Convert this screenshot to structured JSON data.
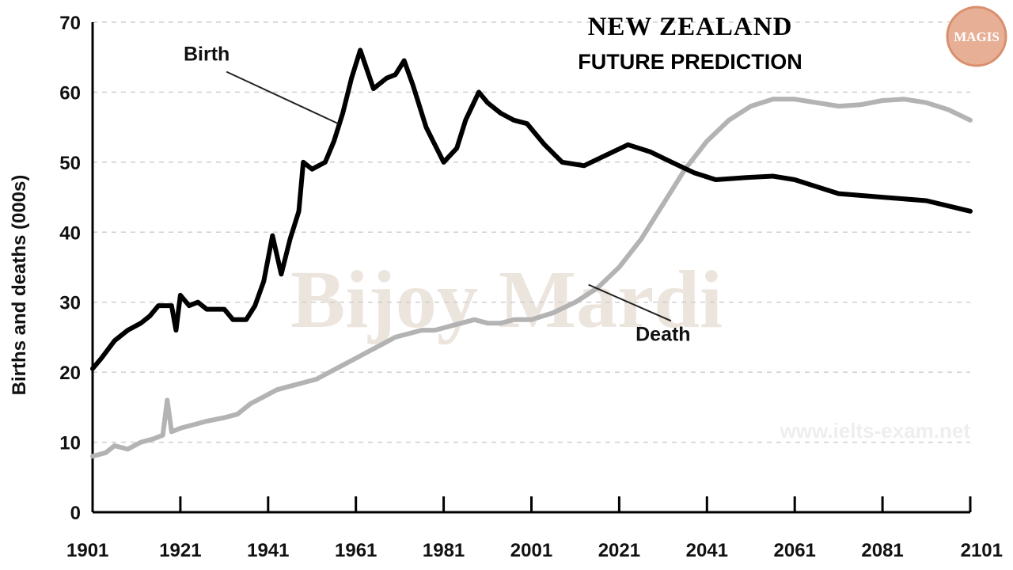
{
  "chart_data": {
    "type": "line",
    "title": "NEW ZEALAND",
    "subtitle": "FUTURE PREDICTION",
    "xlabel": "",
    "ylabel": "Births and deaths (000s)",
    "xlim": [
      1901,
      2101
    ],
    "ylim": [
      0,
      70
    ],
    "x_ticks": [
      1901,
      1921,
      1941,
      1961,
      1981,
      2001,
      2021,
      2041,
      2061,
      2081,
      2101
    ],
    "y_ticks": [
      0,
      10,
      20,
      30,
      40,
      50,
      60,
      70
    ],
    "grid": "horizontal dashed",
    "series": [
      {
        "name": "Birth",
        "color": "#000000",
        "points": [
          [
            1901,
            20.5
          ],
          [
            1903,
            22
          ],
          [
            1906,
            24.5
          ],
          [
            1909,
            26
          ],
          [
            1912,
            27
          ],
          [
            1914,
            28
          ],
          [
            1916,
            29.5
          ],
          [
            1919,
            29.5
          ],
          [
            1920,
            26
          ],
          [
            1921,
            31
          ],
          [
            1923,
            29.5
          ],
          [
            1925,
            30
          ],
          [
            1927,
            29
          ],
          [
            1931,
            29
          ],
          [
            1933,
            27.5
          ],
          [
            1936,
            27.5
          ],
          [
            1938,
            29.5
          ],
          [
            1940,
            33
          ],
          [
            1942,
            39.5
          ],
          [
            1944,
            34
          ],
          [
            1946,
            39
          ],
          [
            1948,
            43
          ],
          [
            1949,
            50
          ],
          [
            1951,
            49
          ],
          [
            1954,
            50
          ],
          [
            1956,
            53
          ],
          [
            1958,
            57
          ],
          [
            1960,
            62
          ],
          [
            1962,
            66
          ],
          [
            1965,
            60.5
          ],
          [
            1968,
            62
          ],
          [
            1970,
            62.5
          ],
          [
            1972,
            64.5
          ],
          [
            1974,
            61
          ],
          [
            1977,
            55
          ],
          [
            1979,
            52.5
          ],
          [
            1981,
            50
          ],
          [
            1984,
            52
          ],
          [
            1986,
            56
          ],
          [
            1989,
            60
          ],
          [
            1991,
            58.5
          ],
          [
            1994,
            57
          ],
          [
            1997,
            56
          ],
          [
            2000,
            55.5
          ],
          [
            2004,
            52.5
          ],
          [
            2008,
            50
          ],
          [
            2013,
            49.5
          ],
          [
            2018,
            51
          ],
          [
            2023,
            52.5
          ],
          [
            2028,
            51.5
          ],
          [
            2033,
            50
          ],
          [
            2038,
            48.5
          ],
          [
            2043,
            47.5
          ],
          [
            2050,
            47.8
          ],
          [
            2056,
            48
          ],
          [
            2061,
            47.5
          ],
          [
            2071,
            45.5
          ],
          [
            2081,
            45
          ],
          [
            2091,
            44.5
          ],
          [
            2101,
            43
          ]
        ]
      },
      {
        "name": "Death",
        "color": "#b3b3b3",
        "points": [
          [
            1901,
            8
          ],
          [
            1904,
            8.5
          ],
          [
            1906,
            9.5
          ],
          [
            1909,
            9
          ],
          [
            1912,
            10
          ],
          [
            1915,
            10.5
          ],
          [
            1917,
            11
          ],
          [
            1918,
            16
          ],
          [
            1919,
            11.5
          ],
          [
            1921,
            12
          ],
          [
            1924,
            12.5
          ],
          [
            1927,
            13
          ],
          [
            1931,
            13.5
          ],
          [
            1934,
            14
          ],
          [
            1937,
            15.5
          ],
          [
            1940,
            16.5
          ],
          [
            1943,
            17.5
          ],
          [
            1946,
            18
          ],
          [
            1949,
            18.5
          ],
          [
            1952,
            19
          ],
          [
            1955,
            20
          ],
          [
            1958,
            21
          ],
          [
            1961,
            22
          ],
          [
            1964,
            23
          ],
          [
            1967,
            24
          ],
          [
            1970,
            25
          ],
          [
            1973,
            25.5
          ],
          [
            1976,
            26
          ],
          [
            1979,
            26
          ],
          [
            1982,
            26.5
          ],
          [
            1985,
            27
          ],
          [
            1988,
            27.5
          ],
          [
            1991,
            27
          ],
          [
            1994,
            27
          ],
          [
            1997,
            27.5
          ],
          [
            2001,
            27.5
          ],
          [
            2006,
            28.5
          ],
          [
            2011,
            30
          ],
          [
            2016,
            32
          ],
          [
            2021,
            35
          ],
          [
            2026,
            39
          ],
          [
            2031,
            44
          ],
          [
            2036,
            49
          ],
          [
            2041,
            53
          ],
          [
            2046,
            56
          ],
          [
            2051,
            58
          ],
          [
            2056,
            59
          ],
          [
            2061,
            59
          ],
          [
            2066,
            58.5
          ],
          [
            2071,
            58
          ],
          [
            2076,
            58.2
          ],
          [
            2081,
            58.8
          ],
          [
            2086,
            59
          ],
          [
            2091,
            58.5
          ],
          [
            2096,
            57.5
          ],
          [
            2101,
            56
          ]
        ]
      }
    ],
    "annotations": [
      {
        "text": "Birth",
        "x": 1927,
        "y": 64.5,
        "target": [
          1957,
          55.5
        ]
      },
      {
        "text": "Death",
        "x": 2031,
        "y": 24.5,
        "target": [
          2014,
          32.5
        ]
      }
    ]
  },
  "watermark_text": "Bijoy Mardi",
  "site_watermark": "www.ielts-exam.net",
  "logo_text": "MAGIS",
  "colors": {
    "birth": "#000000",
    "death": "#b3b3b3",
    "grid": "#cfcfcf",
    "logo_fill": "#e7b096",
    "logo_ring": "#d98f6c"
  }
}
